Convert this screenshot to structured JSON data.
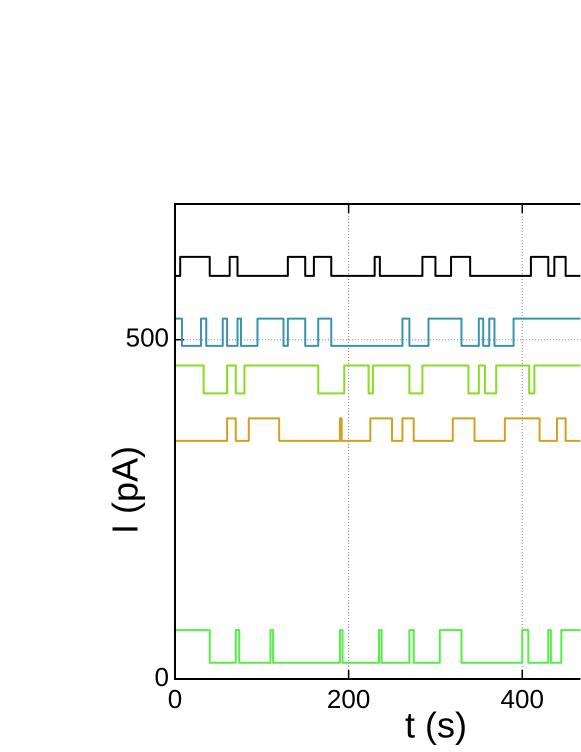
{
  "chart_data": {
    "type": "line",
    "step": true,
    "x_label": "t (s)",
    "y_label": "I (pA)",
    "xlim": [
      0,
      467
    ],
    "ylim": [
      0,
      700
    ],
    "xticks": [
      0,
      200,
      400
    ],
    "yticks": [
      0,
      500
    ],
    "grid": true,
    "series": [
      {
        "color": "#000000",
        "x": [
          0,
          6,
          40,
          63,
          72,
          130,
          150,
          160,
          180,
          230,
          236,
          285,
          300,
          318,
          340,
          410,
          430,
          437,
          450,
          467
        ],
        "values": [
          594,
          622,
          594,
          622,
          594,
          622,
          594,
          622,
          594,
          622,
          594,
          622,
          594,
          622,
          594,
          622,
          594,
          622,
          594,
          594
        ]
      },
      {
        "color": "#3a94b0",
        "x": [
          0,
          8,
          30,
          36,
          55,
          60,
          72,
          76,
          95,
          125,
          130,
          150,
          165,
          180,
          262,
          270,
          292,
          330,
          350,
          355,
          362,
          368,
          390,
          467
        ],
        "values": [
          531,
          491,
          531,
          491,
          531,
          491,
          531,
          491,
          531,
          491,
          531,
          491,
          531,
          491,
          531,
          491,
          531,
          491,
          531,
          491,
          531,
          491,
          531,
          531
        ]
      },
      {
        "color": "#88dd22",
        "x": [
          0,
          33,
          60,
          70,
          80,
          165,
          195,
          223,
          228,
          270,
          285,
          338,
          350,
          357,
          370,
          408,
          414,
          467
        ],
        "values": [
          462,
          421,
          462,
          421,
          462,
          421,
          462,
          421,
          462,
          421,
          462,
          421,
          462,
          421,
          462,
          421,
          462,
          462
        ]
      },
      {
        "color": "#d4a020",
        "x": [
          0,
          60,
          70,
          85,
          120,
          190,
          192,
          225,
          250,
          262,
          275,
          320,
          345,
          380,
          420,
          440,
          450,
          467
        ],
        "values": [
          351,
          384,
          351,
          384,
          351,
          384,
          351,
          384,
          351,
          384,
          351,
          384,
          351,
          384,
          351,
          384,
          351,
          351
        ]
      },
      {
        "color": "#55ee44",
        "x": [
          0,
          40,
          70,
          74,
          110,
          113,
          190,
          193,
          235,
          238,
          270,
          275,
          305,
          330,
          400,
          407,
          430,
          433,
          445,
          467
        ],
        "values": [
          72,
          24,
          72,
          24,
          72,
          24,
          72,
          24,
          72,
          24,
          72,
          24,
          72,
          24,
          72,
          24,
          72,
          24,
          72,
          72
        ]
      }
    ]
  }
}
